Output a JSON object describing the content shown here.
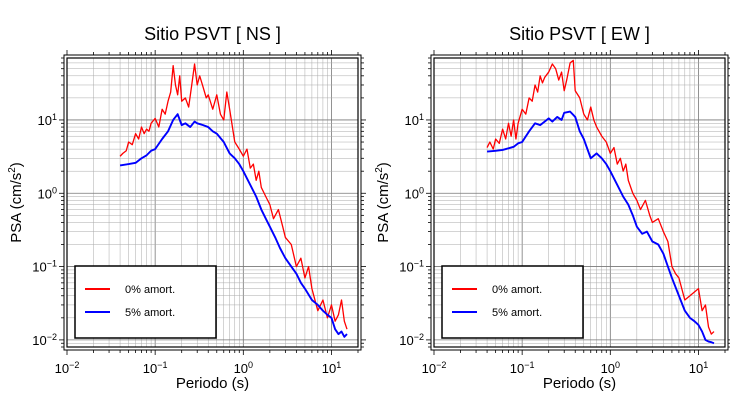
{
  "chart_data": [
    {
      "type": "line",
      "title": "Sitio PSVT [ NS ]",
      "xlabel": "Periodo (s)",
      "ylabel_main": "PSA (cm/s",
      "ylabel_sup": "2",
      "ylabel_close": ")",
      "x_scale": "log",
      "y_scale": "log",
      "xlim": [
        0.01,
        20
      ],
      "ylim": [
        0.008,
        70
      ],
      "x_ticks": [
        {
          "value": 0.01,
          "base": "10",
          "exp": "−2"
        },
        {
          "value": 0.1,
          "base": "10",
          "exp": "−1"
        },
        {
          "value": 1,
          "base": "10",
          "exp": "0"
        },
        {
          "value": 10,
          "base": "10",
          "exp": "1"
        }
      ],
      "y_ticks": [
        {
          "value": 0.01,
          "base": "10",
          "exp": "−2"
        },
        {
          "value": 0.1,
          "base": "10",
          "exp": "−1"
        },
        {
          "value": 1,
          "base": "10",
          "exp": "0"
        },
        {
          "value": 10,
          "base": "10",
          "exp": "1"
        }
      ],
      "grid": true,
      "legend_position": "bottom-left",
      "series": [
        {
          "name": "0% amort.",
          "color": "#ff0000",
          "points": [
            [
              0.04,
              3.2
            ],
            [
              0.043,
              3.5
            ],
            [
              0.047,
              3.8
            ],
            [
              0.05,
              5.0
            ],
            [
              0.055,
              4.6
            ],
            [
              0.06,
              6.5
            ],
            [
              0.065,
              5.5
            ],
            [
              0.07,
              8.0
            ],
            [
              0.075,
              6.5
            ],
            [
              0.08,
              7.5
            ],
            [
              0.085,
              7.0
            ],
            [
              0.09,
              9.0
            ],
            [
              0.1,
              10.5
            ],
            [
              0.11,
              8.0
            ],
            [
              0.12,
              14
            ],
            [
              0.13,
              12
            ],
            [
              0.14,
              18
            ],
            [
              0.15,
              24
            ],
            [
              0.16,
              55
            ],
            [
              0.17,
              30
            ],
            [
              0.18,
              22
            ],
            [
              0.19,
              40
            ],
            [
              0.2,
              18
            ],
            [
              0.22,
              20
            ],
            [
              0.24,
              15
            ],
            [
              0.26,
              30
            ],
            [
              0.28,
              58
            ],
            [
              0.3,
              30
            ],
            [
              0.32,
              40
            ],
            [
              0.35,
              28
            ],
            [
              0.38,
              20
            ],
            [
              0.4,
              22
            ],
            [
              0.45,
              14
            ],
            [
              0.5,
              22
            ],
            [
              0.55,
              12
            ],
            [
              0.6,
              10
            ],
            [
              0.65,
              24
            ],
            [
              0.7,
              14
            ],
            [
              0.8,
              5
            ],
            [
              0.9,
              4
            ],
            [
              1.0,
              3.2
            ],
            [
              1.1,
              4.0
            ],
            [
              1.2,
              2.2
            ],
            [
              1.3,
              2.5
            ],
            [
              1.4,
              1.5
            ],
            [
              1.5,
              2.0
            ],
            [
              1.6,
              1.2
            ],
            [
              1.8,
              0.9
            ],
            [
              2.0,
              0.7
            ],
            [
              2.2,
              0.45
            ],
            [
              2.5,
              0.6
            ],
            [
              2.8,
              0.35
            ],
            [
              3.0,
              0.25
            ],
            [
              3.5,
              0.2
            ],
            [
              4.0,
              0.1
            ],
            [
              4.5,
              0.13
            ],
            [
              5.0,
              0.07
            ],
            [
              5.5,
              0.1
            ],
            [
              6.0,
              0.05
            ],
            [
              7.0,
              0.025
            ],
            [
              8.0,
              0.035
            ],
            [
              9.0,
              0.02
            ],
            [
              10.0,
              0.03
            ],
            [
              11.0,
              0.018
            ],
            [
              12.0,
              0.022
            ],
            [
              13.0,
              0.035
            ],
            [
              14.0,
              0.018
            ],
            [
              15.0,
              0.014
            ]
          ]
        },
        {
          "name": "5% amort.",
          "color": "#0000ff",
          "points": [
            [
              0.04,
              2.4
            ],
            [
              0.05,
              2.5
            ],
            [
              0.06,
              2.6
            ],
            [
              0.07,
              3.0
            ],
            [
              0.08,
              3.3
            ],
            [
              0.09,
              3.8
            ],
            [
              0.1,
              4.0
            ],
            [
              0.12,
              5.5
            ],
            [
              0.14,
              7.0
            ],
            [
              0.16,
              10.0
            ],
            [
              0.18,
              12.0
            ],
            [
              0.2,
              8.5
            ],
            [
              0.22,
              9.0
            ],
            [
              0.25,
              8.0
            ],
            [
              0.28,
              9.5
            ],
            [
              0.3,
              9.0
            ],
            [
              0.35,
              8.5
            ],
            [
              0.4,
              8.0
            ],
            [
              0.45,
              7.0
            ],
            [
              0.5,
              6.5
            ],
            [
              0.6,
              5.0
            ],
            [
              0.7,
              3.5
            ],
            [
              0.8,
              3.0
            ],
            [
              0.9,
              2.5
            ],
            [
              1.0,
              2.0
            ],
            [
              1.2,
              1.3
            ],
            [
              1.4,
              0.9
            ],
            [
              1.6,
              0.6
            ],
            [
              1.8,
              0.45
            ],
            [
              2.0,
              0.35
            ],
            [
              2.3,
              0.25
            ],
            [
              2.6,
              0.18
            ],
            [
              3.0,
              0.13
            ],
            [
              3.5,
              0.1
            ],
            [
              4.0,
              0.08
            ],
            [
              4.5,
              0.06
            ],
            [
              5.0,
              0.05
            ],
            [
              6.0,
              0.035
            ],
            [
              7.0,
              0.03
            ],
            [
              8.0,
              0.025
            ],
            [
              9.0,
              0.022
            ],
            [
              10.0,
              0.02
            ],
            [
              11.0,
              0.014
            ],
            [
              12.0,
              0.012
            ],
            [
              13.0,
              0.013
            ],
            [
              14.0,
              0.011
            ],
            [
              15.0,
              0.012
            ]
          ]
        }
      ]
    },
    {
      "type": "line",
      "title": "Sitio PSVT [ EW ]",
      "xlabel": "Periodo (s)",
      "ylabel_main": "PSA (cm/s",
      "ylabel_sup": "2",
      "ylabel_close": ")",
      "x_scale": "log",
      "y_scale": "log",
      "xlim": [
        0.01,
        20
      ],
      "ylim": [
        0.008,
        70
      ],
      "x_ticks": [
        {
          "value": 0.01,
          "base": "10",
          "exp": "−2"
        },
        {
          "value": 0.1,
          "base": "10",
          "exp": "−1"
        },
        {
          "value": 1,
          "base": "10",
          "exp": "0"
        },
        {
          "value": 10,
          "base": "10",
          "exp": "1"
        }
      ],
      "y_ticks": [
        {
          "value": 0.01,
          "base": "10",
          "exp": "−2"
        },
        {
          "value": 0.1,
          "base": "10",
          "exp": "−1"
        },
        {
          "value": 1,
          "base": "10",
          "exp": "0"
        },
        {
          "value": 10,
          "base": "10",
          "exp": "1"
        }
      ],
      "grid": true,
      "legend_position": "bottom-left",
      "series": [
        {
          "name": "0% amort.",
          "color": "#ff0000",
          "points": [
            [
              0.04,
              4.2
            ],
            [
              0.043,
              5.0
            ],
            [
              0.047,
              4.0
            ],
            [
              0.05,
              5.5
            ],
            [
              0.055,
              4.8
            ],
            [
              0.06,
              7.5
            ],
            [
              0.065,
              5.5
            ],
            [
              0.07,
              9.0
            ],
            [
              0.075,
              6.0
            ],
            [
              0.08,
              10.0
            ],
            [
              0.085,
              5.5
            ],
            [
              0.09,
              9.0
            ],
            [
              0.1,
              14
            ],
            [
              0.11,
              12
            ],
            [
              0.12,
              20
            ],
            [
              0.13,
              18
            ],
            [
              0.14,
              30
            ],
            [
              0.15,
              24
            ],
            [
              0.16,
              40
            ],
            [
              0.17,
              32
            ],
            [
              0.18,
              38
            ],
            [
              0.2,
              45
            ],
            [
              0.22,
              58
            ],
            [
              0.24,
              50
            ],
            [
              0.26,
              35
            ],
            [
              0.28,
              45
            ],
            [
              0.3,
              25
            ],
            [
              0.32,
              35
            ],
            [
              0.35,
              60
            ],
            [
              0.38,
              65
            ],
            [
              0.4,
              25
            ],
            [
              0.45,
              20
            ],
            [
              0.5,
              12
            ],
            [
              0.55,
              10
            ],
            [
              0.6,
              15
            ],
            [
              0.65,
              10
            ],
            [
              0.7,
              8
            ],
            [
              0.8,
              6
            ],
            [
              0.9,
              5
            ],
            [
              1.0,
              3.5
            ],
            [
              1.1,
              4.2
            ],
            [
              1.2,
              2.5
            ],
            [
              1.3,
              3.0
            ],
            [
              1.4,
              2.0
            ],
            [
              1.5,
              2.5
            ],
            [
              1.6,
              1.5
            ],
            [
              1.8,
              1.0
            ],
            [
              2.0,
              0.8
            ],
            [
              2.2,
              0.6
            ],
            [
              2.5,
              0.8
            ],
            [
              2.8,
              0.5
            ],
            [
              3.0,
              0.4
            ],
            [
              3.5,
              0.45
            ],
            [
              4.0,
              0.3
            ],
            [
              4.5,
              0.22
            ],
            [
              5.0,
              0.1
            ],
            [
              5.5,
              0.08
            ],
            [
              6.0,
              0.07
            ],
            [
              7.0,
              0.035
            ],
            [
              8.0,
              0.04
            ],
            [
              9.0,
              0.045
            ],
            [
              10.0,
              0.05
            ],
            [
              11.0,
              0.025
            ],
            [
              12.0,
              0.03
            ],
            [
              13.0,
              0.015
            ],
            [
              14.0,
              0.012
            ],
            [
              15.0,
              0.013
            ]
          ]
        },
        {
          "name": "5% amort.",
          "color": "#0000ff",
          "points": [
            [
              0.04,
              3.7
            ],
            [
              0.05,
              3.8
            ],
            [
              0.06,
              3.9
            ],
            [
              0.07,
              4.1
            ],
            [
              0.08,
              4.3
            ],
            [
              0.09,
              4.8
            ],
            [
              0.1,
              5.0
            ],
            [
              0.12,
              7.0
            ],
            [
              0.14,
              9.0
            ],
            [
              0.16,
              8.5
            ],
            [
              0.18,
              9.5
            ],
            [
              0.2,
              10.5
            ],
            [
              0.22,
              9.5
            ],
            [
              0.25,
              11.0
            ],
            [
              0.28,
              10.0
            ],
            [
              0.3,
              12.5
            ],
            [
              0.35,
              13.0
            ],
            [
              0.4,
              11.0
            ],
            [
              0.45,
              7.0
            ],
            [
              0.5,
              5.5
            ],
            [
              0.6,
              3.0
            ],
            [
              0.7,
              3.5
            ],
            [
              0.8,
              3.0
            ],
            [
              0.9,
              2.5
            ],
            [
              1.0,
              2.0
            ],
            [
              1.2,
              1.3
            ],
            [
              1.4,
              0.9
            ],
            [
              1.6,
              0.7
            ],
            [
              1.8,
              0.5
            ],
            [
              2.0,
              0.35
            ],
            [
              2.3,
              0.28
            ],
            [
              2.6,
              0.3
            ],
            [
              3.0,
              0.22
            ],
            [
              3.5,
              0.2
            ],
            [
              4.0,
              0.15
            ],
            [
              4.5,
              0.1
            ],
            [
              5.0,
              0.07
            ],
            [
              6.0,
              0.04
            ],
            [
              7.0,
              0.025
            ],
            [
              8.0,
              0.02
            ],
            [
              9.0,
              0.018
            ],
            [
              10.0,
              0.016
            ],
            [
              11.0,
              0.013
            ],
            [
              12.0,
              0.01
            ],
            [
              13.0,
              0.0095
            ],
            [
              14.0,
              0.0093
            ],
            [
              15.0,
              0.009
            ]
          ]
        }
      ]
    }
  ]
}
